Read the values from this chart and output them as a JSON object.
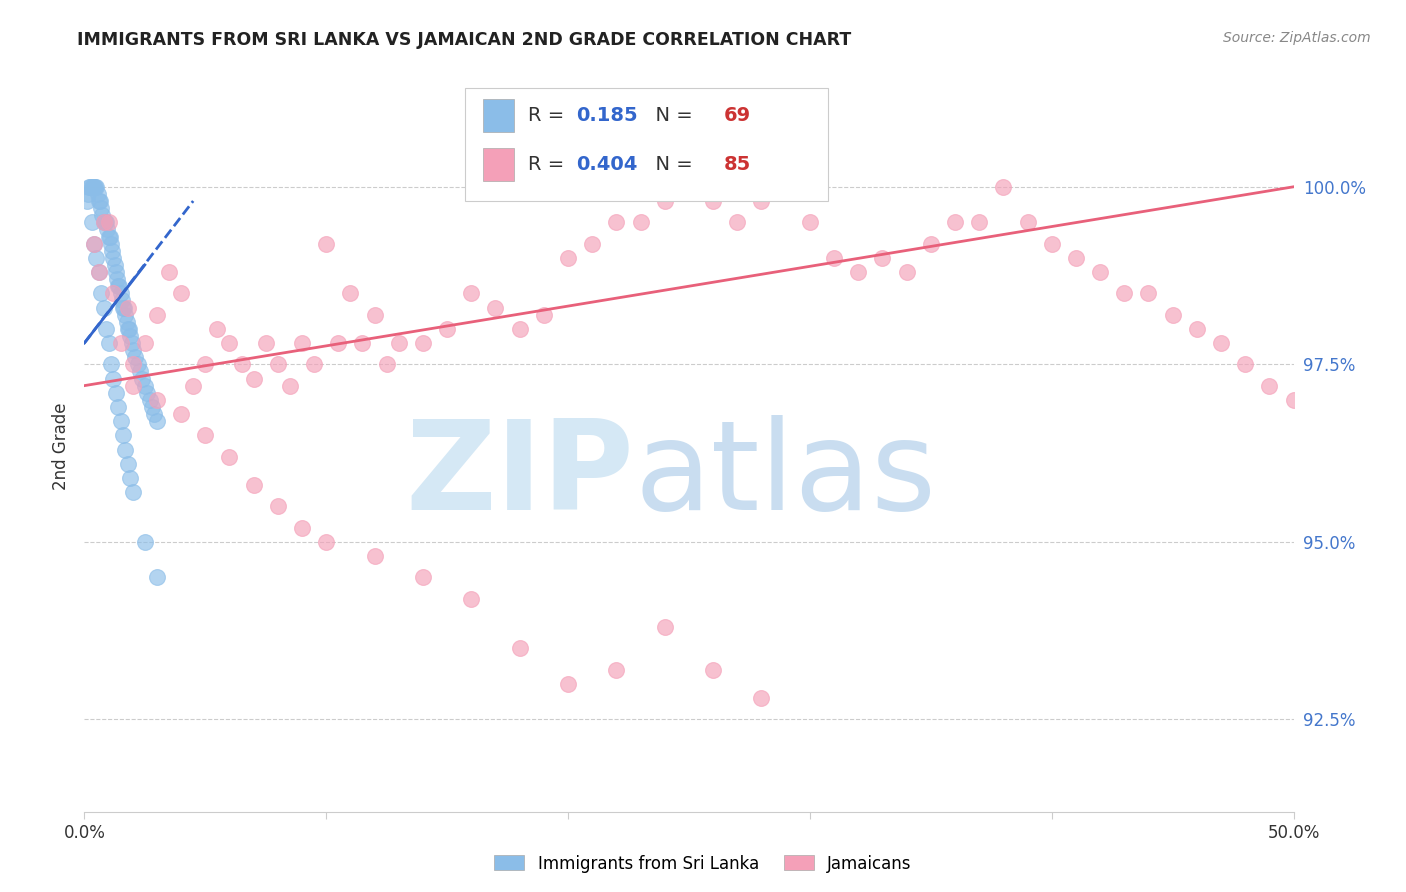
{
  "title": "IMMIGRANTS FROM SRI LANKA VS JAMAICAN 2ND GRADE CORRELATION CHART",
  "source": "Source: ZipAtlas.com",
  "ylabel": "2nd Grade",
  "ytick_values": [
    92.5,
    95.0,
    97.5,
    100.0
  ],
  "xlim": [
    0.0,
    50.0
  ],
  "ylim": [
    91.2,
    101.5
  ],
  "legend_r_blue": "0.185",
  "legend_n_blue": "69",
  "legend_r_pink": "0.404",
  "legend_n_pink": "85",
  "background_color": "#FFFFFF",
  "blue_scatter_color": "#8BBDE8",
  "pink_scatter_color": "#F4A0B8",
  "blue_line_color": "#3366CC",
  "blue_line_dash": true,
  "pink_line_color": "#E8607A",
  "ytick_color": "#4477CC",
  "grid_color": "#CCCCCC",
  "title_color": "#222222",
  "source_color": "#888888",
  "blue_x": [
    0.1,
    0.15,
    0.2,
    0.25,
    0.3,
    0.35,
    0.4,
    0.45,
    0.5,
    0.55,
    0.6,
    0.65,
    0.7,
    0.75,
    0.8,
    0.85,
    0.9,
    0.95,
    1.0,
    1.05,
    1.1,
    1.15,
    1.2,
    1.25,
    1.3,
    1.35,
    1.4,
    1.45,
    1.5,
    1.55,
    1.6,
    1.65,
    1.7,
    1.75,
    1.8,
    1.85,
    1.9,
    1.95,
    2.0,
    2.1,
    2.2,
    2.3,
    2.4,
    2.5,
    2.6,
    2.7,
    2.8,
    2.9,
    3.0,
    0.3,
    0.4,
    0.5,
    0.6,
    0.7,
    0.8,
    0.9,
    1.0,
    1.1,
    1.2,
    1.3,
    1.4,
    1.5,
    1.6,
    1.7,
    1.8,
    1.9,
    2.0,
    2.5,
    3.0
  ],
  "blue_y": [
    99.8,
    99.9,
    100.0,
    100.0,
    100.0,
    100.0,
    100.0,
    100.0,
    100.0,
    99.9,
    99.8,
    99.8,
    99.7,
    99.6,
    99.5,
    99.5,
    99.5,
    99.4,
    99.3,
    99.3,
    99.2,
    99.1,
    99.0,
    98.9,
    98.8,
    98.7,
    98.6,
    98.6,
    98.5,
    98.4,
    98.3,
    98.3,
    98.2,
    98.1,
    98.0,
    98.0,
    97.9,
    97.8,
    97.7,
    97.6,
    97.5,
    97.4,
    97.3,
    97.2,
    97.1,
    97.0,
    96.9,
    96.8,
    96.7,
    99.5,
    99.2,
    99.0,
    98.8,
    98.5,
    98.3,
    98.0,
    97.8,
    97.5,
    97.3,
    97.1,
    96.9,
    96.7,
    96.5,
    96.3,
    96.1,
    95.9,
    95.7,
    95.0,
    94.5
  ],
  "pink_x": [
    0.4,
    0.6,
    0.8,
    1.0,
    1.2,
    1.5,
    1.8,
    2.0,
    2.5,
    3.0,
    3.5,
    4.0,
    4.5,
    5.0,
    5.5,
    6.0,
    6.5,
    7.0,
    7.5,
    8.0,
    8.5,
    9.0,
    9.5,
    10.0,
    10.5,
    11.0,
    11.5,
    12.0,
    12.5,
    13.0,
    14.0,
    15.0,
    16.0,
    17.0,
    18.0,
    19.0,
    20.0,
    21.0,
    22.0,
    23.0,
    24.0,
    25.0,
    26.0,
    27.0,
    28.0,
    29.0,
    30.0,
    31.0,
    32.0,
    33.0,
    34.0,
    35.0,
    36.0,
    37.0,
    38.0,
    39.0,
    40.0,
    41.0,
    42.0,
    43.0,
    44.0,
    45.0,
    46.0,
    47.0,
    48.0,
    49.0,
    50.0,
    2.0,
    3.0,
    4.0,
    5.0,
    6.0,
    7.0,
    8.0,
    9.0,
    10.0,
    12.0,
    14.0,
    16.0,
    18.0,
    20.0,
    22.0,
    24.0,
    26.0,
    28.0
  ],
  "pink_y": [
    99.2,
    98.8,
    99.5,
    99.5,
    98.5,
    97.8,
    98.3,
    97.5,
    97.8,
    98.2,
    98.8,
    98.5,
    97.2,
    97.5,
    98.0,
    97.8,
    97.5,
    97.3,
    97.8,
    97.5,
    97.2,
    97.8,
    97.5,
    99.2,
    97.8,
    98.5,
    97.8,
    98.2,
    97.5,
    97.8,
    97.8,
    98.0,
    98.5,
    98.3,
    98.0,
    98.2,
    99.0,
    99.2,
    99.5,
    99.5,
    99.8,
    100.0,
    99.8,
    99.5,
    99.8,
    100.0,
    99.5,
    99.0,
    98.8,
    99.0,
    98.8,
    99.2,
    99.5,
    99.5,
    100.0,
    99.5,
    99.2,
    99.0,
    98.8,
    98.5,
    98.5,
    98.2,
    98.0,
    97.8,
    97.5,
    97.2,
    97.0,
    97.2,
    97.0,
    96.8,
    96.5,
    96.2,
    95.8,
    95.5,
    95.2,
    95.0,
    94.8,
    94.5,
    94.2,
    93.5,
    93.0,
    93.2,
    93.8,
    93.2,
    92.8
  ],
  "blue_trend_x": [
    0.0,
    4.5
  ],
  "blue_trend_y": [
    97.8,
    99.8
  ],
  "pink_trend_x": [
    0.0,
    50.0
  ],
  "pink_trend_y": [
    97.2,
    100.0
  ]
}
